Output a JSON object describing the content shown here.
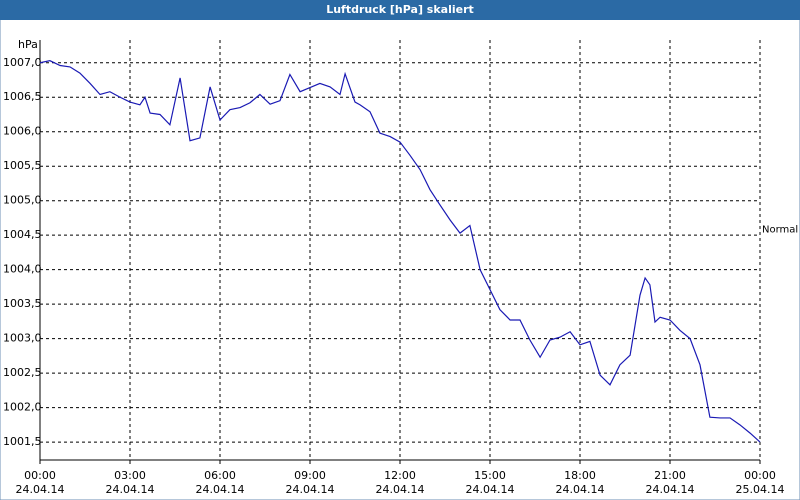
{
  "chart_data": {
    "type": "line",
    "title": "Luftdruck [hPa] skaliert",
    "y_unit": "hPa",
    "x": [
      0,
      0.33,
      0.67,
      1,
      1.33,
      1.67,
      2,
      2.33,
      2.67,
      3,
      3.33,
      3.5,
      3.67,
      4,
      4.33,
      4.67,
      5,
      5.33,
      5.67,
      6,
      6.33,
      6.67,
      7,
      7.33,
      7.67,
      8,
      8.33,
      8.67,
      9,
      9.33,
      9.67,
      10,
      10.17,
      10.5,
      10.67,
      11,
      11.33,
      11.67,
      12,
      12.33,
      12.67,
      13,
      13.33,
      13.67,
      14,
      14.33,
      14.67,
      15,
      15.33,
      15.67,
      16,
      16.33,
      16.67,
      17,
      17.33,
      17.67,
      18,
      18.33,
      18.67,
      19,
      19.33,
      19.67,
      20,
      20.17,
      20.33,
      20.5,
      20.67,
      21,
      21.33,
      21.67,
      22,
      22.33,
      22.67,
      23,
      23.33,
      23.67,
      24
    ],
    "series": [
      {
        "color": "#1a1ab4",
        "values": [
          1007.0,
          1007.03,
          1006.96,
          1006.94,
          1006.85,
          1006.7,
          1006.54,
          1006.58,
          1006.5,
          1006.43,
          1006.39,
          1006.5,
          1006.27,
          1006.25,
          1006.1,
          1006.78,
          1005.87,
          1005.91,
          1006.65,
          1006.17,
          1006.32,
          1006.35,
          1006.42,
          1006.54,
          1006.4,
          1006.45,
          1006.83,
          1006.58,
          1006.64,
          1006.7,
          1006.65,
          1006.54,
          1006.84,
          1006.43,
          1006.39,
          1006.29,
          1005.98,
          1005.93,
          1005.85,
          1005.66,
          1005.45,
          1005.16,
          1004.94,
          1004.72,
          1004.53,
          1004.64,
          1004.0,
          1003.71,
          1003.42,
          1003.27,
          1003.27,
          1002.98,
          1002.73,
          1002.98,
          1003.02,
          1003.1,
          1002.91,
          1002.96,
          1002.47,
          1002.33,
          1002.62,
          1002.76,
          1003.63,
          1003.88,
          1003.78,
          1003.24,
          1003.31,
          1003.27,
          1003.12,
          1003.0,
          1002.62,
          1001.86,
          1001.85,
          1001.85,
          1001.75,
          1001.63,
          1001.5
        ]
      }
    ],
    "xlim": [
      0,
      24
    ],
    "xticks": [
      {
        "value": 0,
        "label": "00:00"
      },
      {
        "value": 3,
        "label": "03:00"
      },
      {
        "value": 6,
        "label": "06:00"
      },
      {
        "value": 9,
        "label": "09:00"
      },
      {
        "value": 12,
        "label": "12:00"
      },
      {
        "value": 15,
        "label": "15:00"
      },
      {
        "value": 18,
        "label": "18:00"
      },
      {
        "value": 21,
        "label": "21:00"
      },
      {
        "value": 24,
        "label": "00:00"
      }
    ],
    "xtick_dates": [
      "24.04.14",
      "24.04.14",
      "24.04.14",
      "24.04.14",
      "24.04.14",
      "24.04.14",
      "24.04.14",
      "24.04.14",
      "25.04.14"
    ],
    "ylim": [
      1001.24,
      1007.33
    ],
    "yticks": [
      {
        "value": 1001.5,
        "label": "1001,5"
      },
      {
        "value": 1002,
        "label": "1002,0"
      },
      {
        "value": 1002.5,
        "label": "1002,5"
      },
      {
        "value": 1003,
        "label": "1003,0"
      },
      {
        "value": 1003.5,
        "label": "1003,5"
      },
      {
        "value": 1004,
        "label": "1004,0"
      },
      {
        "value": 1004.5,
        "label": "1004,5"
      },
      {
        "value": 1005,
        "label": "1005,0"
      },
      {
        "value": 1005.5,
        "label": "1005,5"
      },
      {
        "value": 1006,
        "label": "1006,0"
      },
      {
        "value": 1006.5,
        "label": "1006,5"
      },
      {
        "value": 1007,
        "label": "1007,0"
      }
    ],
    "grid": true,
    "annotations": [
      {
        "text": "Normal",
        "value": 1004.58
      }
    ]
  }
}
